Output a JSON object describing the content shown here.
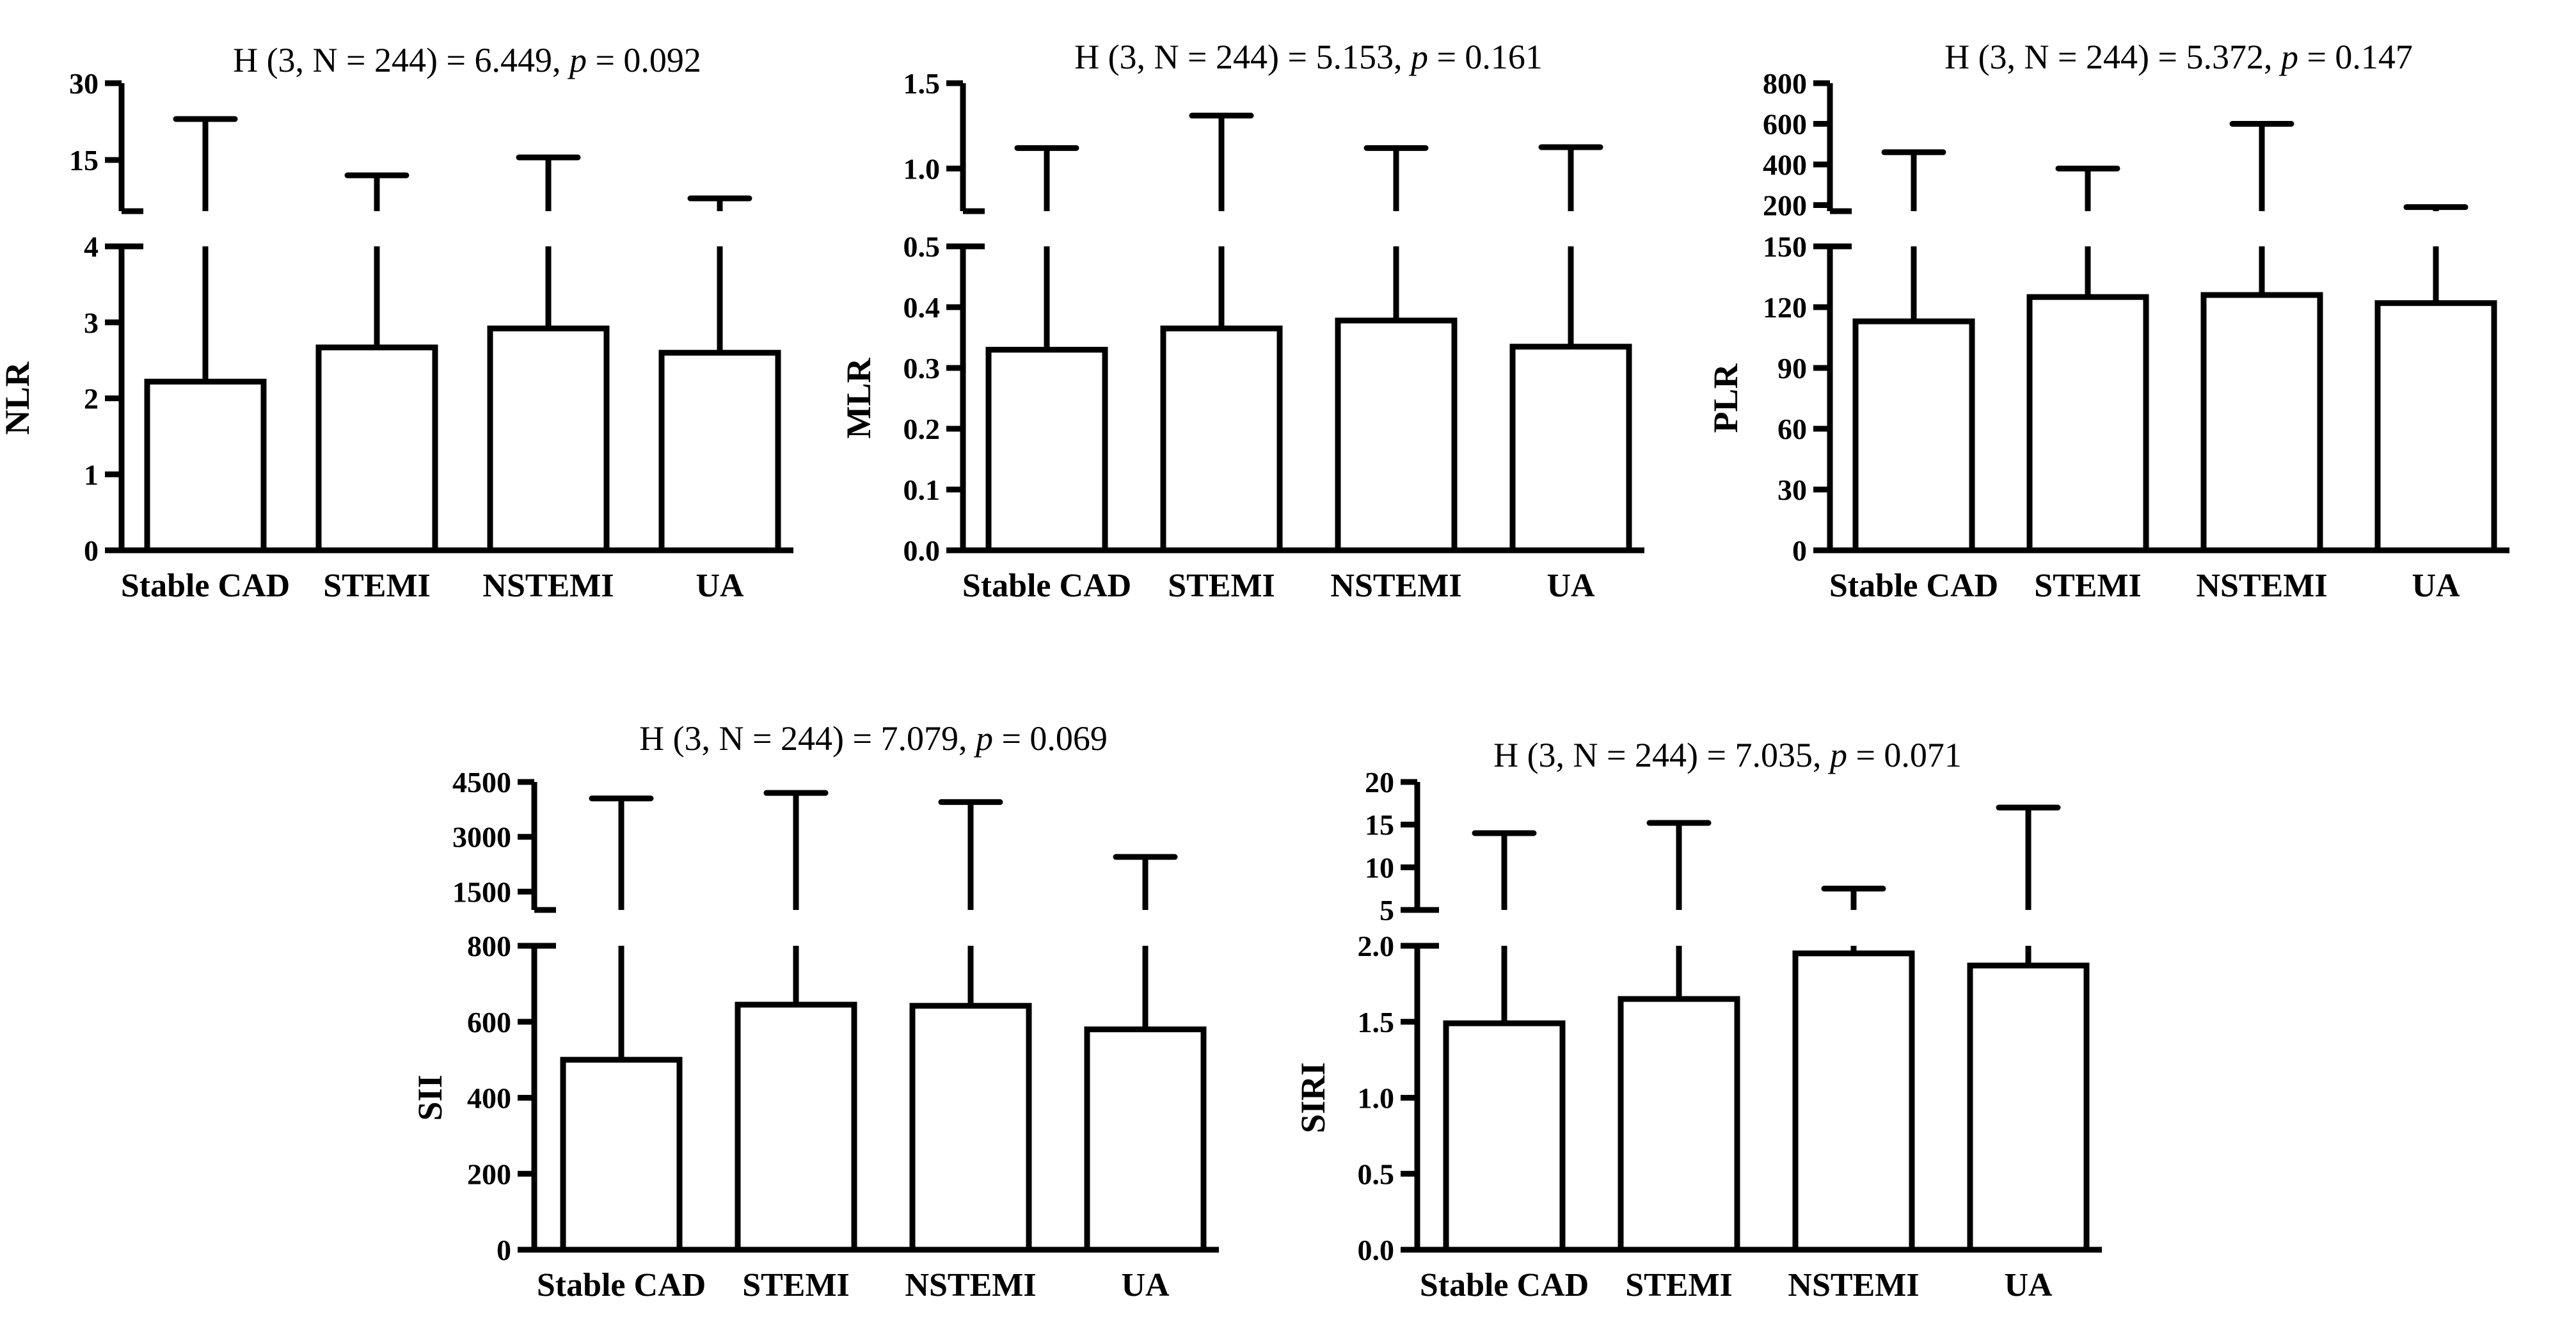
{
  "chart_data": [
    {
      "type": "bar",
      "title_prefix": "H (3, N = 244) = 6.449, ",
      "title_p": "p",
      "title_suffix": " = 0.092",
      "ylabel": "NLR",
      "categories": [
        "Stable CAD",
        "STEMI",
        "NSTEMI",
        "UA"
      ],
      "values": [
        2.22,
        2.67,
        2.92,
        2.6
      ],
      "error_upper": [
        23,
        12,
        15.5,
        7.5
      ],
      "axis_break": true,
      "lower_range": [
        0,
        4
      ],
      "lower_ticks": [
        0,
        1,
        2,
        3,
        4
      ],
      "lower_tick_labels": [
        "0",
        "1",
        "2",
        "3",
        "4"
      ],
      "upper_range": [
        5,
        30
      ],
      "upper_ticks": [
        15,
        30
      ],
      "upper_tick_labels": [
        "15",
        "30"
      ]
    },
    {
      "type": "bar",
      "title_prefix": "H (3, N = 244) = 5.153, ",
      "title_p": "p",
      "title_suffix": " = 0.161",
      "ylabel": "MLR",
      "categories": [
        "Stable CAD",
        "STEMI",
        "NSTEMI",
        "UA"
      ],
      "values": [
        0.33,
        0.365,
        0.378,
        0.335
      ],
      "error_upper": [
        1.12,
        1.31,
        1.12,
        1.125
      ],
      "axis_break": true,
      "lower_range": [
        0,
        0.5
      ],
      "lower_ticks": [
        0,
        0.1,
        0.2,
        0.3,
        0.4,
        0.5
      ],
      "lower_tick_labels": [
        "0.0",
        "0.1",
        "0.2",
        "0.3",
        "0.4",
        "0.5"
      ],
      "upper_range": [
        0.75,
        1.5
      ],
      "upper_ticks": [
        1.0,
        1.5
      ],
      "upper_tick_labels": [
        "1.0",
        "1.5"
      ]
    },
    {
      "type": "bar",
      "title_prefix": "H (3, N = 244) = 5.372, ",
      "title_p": "p",
      "title_suffix": " = 0.147",
      "ylabel": "PLR",
      "categories": [
        "Stable CAD",
        "STEMI",
        "NSTEMI",
        "UA"
      ],
      "values": [
        113,
        125,
        126,
        122
      ],
      "error_upper": [
        460,
        380,
        600,
        190
      ],
      "axis_break": true,
      "lower_range": [
        0,
        150
      ],
      "lower_ticks": [
        0,
        30,
        60,
        90,
        120,
        150
      ],
      "lower_tick_labels": [
        "0",
        "30",
        "60",
        "90",
        "120",
        "150"
      ],
      "upper_range": [
        170,
        800
      ],
      "upper_ticks": [
        200,
        400,
        600,
        800
      ],
      "upper_tick_labels": [
        "200",
        "400",
        "600",
        "800"
      ]
    },
    {
      "type": "bar",
      "title_prefix": "H (3, N = 244) = 7.079, ",
      "title_p": "p",
      "title_suffix": " = 0.069",
      "ylabel": "SII",
      "categories": [
        "Stable CAD",
        "STEMI",
        "NSTEMI",
        "UA"
      ],
      "values": [
        500,
        645,
        642,
        580
      ],
      "error_upper": [
        4050,
        4200,
        3950,
        2450
      ],
      "axis_break": true,
      "lower_range": [
        0,
        800
      ],
      "lower_ticks": [
        0,
        200,
        400,
        600,
        800
      ],
      "lower_tick_labels": [
        "0",
        "200",
        "400",
        "600",
        "800"
      ],
      "upper_range": [
        1000,
        4500
      ],
      "upper_ticks": [
        1500,
        3000,
        4500
      ],
      "upper_tick_labels": [
        "1500",
        "3000",
        "4500"
      ]
    },
    {
      "type": "bar",
      "title_prefix": "H (3, N = 244) = 7.035, ",
      "title_p": "p",
      "title_suffix": " = 0.071",
      "ylabel": "SIRI",
      "categories": [
        "Stable CAD",
        "STEMI",
        "NSTEMI",
        "UA"
      ],
      "values": [
        1.49,
        1.65,
        1.95,
        1.87
      ],
      "error_upper": [
        14,
        15.2,
        7.5,
        17
      ],
      "axis_break": true,
      "lower_range": [
        0,
        2.0
      ],
      "lower_ticks": [
        0,
        0.5,
        1.0,
        1.5,
        2.0
      ],
      "lower_tick_labels": [
        "0.0",
        "0.5",
        "1.0",
        "1.5",
        "2.0"
      ],
      "upper_range": [
        5,
        20
      ],
      "upper_ticks": [
        5,
        10,
        15,
        20
      ],
      "upper_tick_labels": [
        "5",
        "10",
        "15",
        "20"
      ]
    }
  ]
}
